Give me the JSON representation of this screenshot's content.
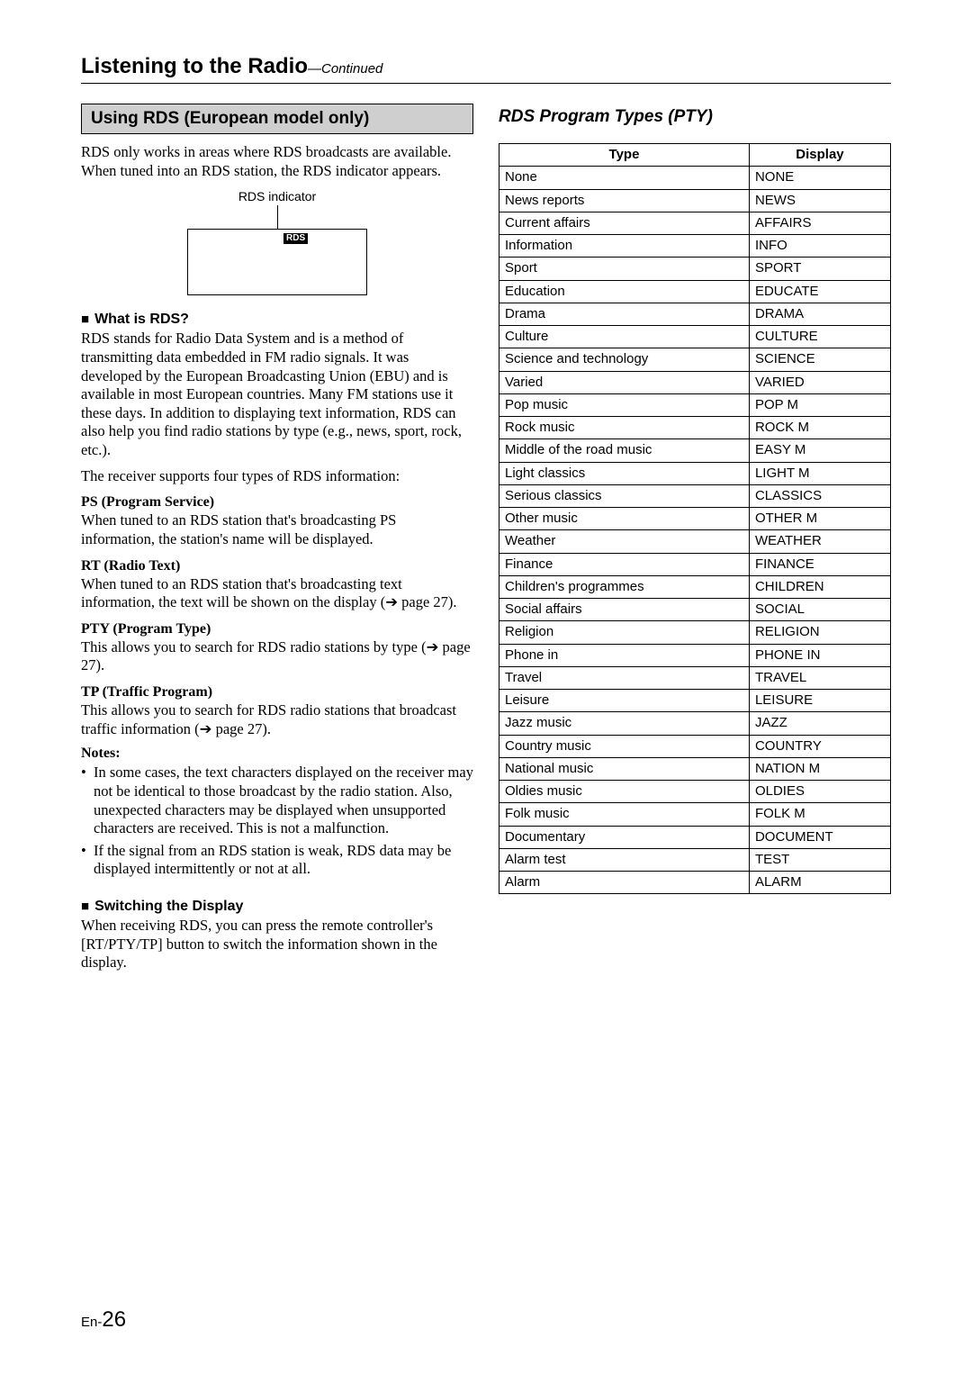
{
  "page": {
    "title": "Listening to the Radio",
    "continued": "—Continued",
    "footer_prefix": "En-",
    "footer_number": "26"
  },
  "left": {
    "section_title": "Using RDS (European model only)",
    "intro": "RDS only works in areas where RDS broadcasts are available. When tuned into an RDS station, the RDS indicator appears.",
    "diagram": {
      "label": "RDS indicator",
      "chip": "RDS"
    },
    "what_is_heading": "What is RDS?",
    "what_is_body": "RDS stands for Radio Data System and is a method of transmitting data embedded in FM radio signals. It was developed by the European Broadcasting Union (EBU) and is available in most European countries. Many FM stations use it these days. In addition to displaying text information, RDS can also help you find radio stations by type (e.g., news, sport, rock, etc.).",
    "supports_line": "The receiver supports four types of RDS information:",
    "ps": {
      "title": "PS (Program Service)",
      "body": "When tuned to an RDS station that's broadcasting PS information, the station's name will be displayed."
    },
    "rt": {
      "title": "RT (Radio Text)",
      "body": "When tuned to an RDS station that's broadcasting text information, the text will be shown on the display (➔ page 27)."
    },
    "pty": {
      "title": "PTY (Program Type)",
      "body": "This allows you to search for RDS radio stations by type (➔ page 27)."
    },
    "tp": {
      "title": "TP (Traffic Program)",
      "body": "This allows you to search for RDS radio stations that broadcast traffic information (➔ page 27)."
    },
    "notes_title": "Notes:",
    "notes": [
      "In some cases, the text characters displayed on the receiver may not be identical to those broadcast by the radio station. Also, unexpected characters may be displayed when unsupported characters are received. This is not a malfunction.",
      "If the signal from an RDS station is weak, RDS data may be displayed intermittently or not at all."
    ],
    "switching_heading": "Switching the Display",
    "switching_body": "When receiving RDS, you can press the remote controller's [RT/PTY/TP] button to switch the information shown in the display."
  },
  "right": {
    "heading": "RDS Program Types (PTY)",
    "table": {
      "columns": [
        "Type",
        "Display"
      ],
      "rows": [
        [
          "None",
          "NONE"
        ],
        [
          "News reports",
          "NEWS"
        ],
        [
          "Current affairs",
          "AFFAIRS"
        ],
        [
          "Information",
          "INFO"
        ],
        [
          "Sport",
          "SPORT"
        ],
        [
          "Education",
          "EDUCATE"
        ],
        [
          "Drama",
          "DRAMA"
        ],
        [
          "Culture",
          "CULTURE"
        ],
        [
          "Science and technology",
          "SCIENCE"
        ],
        [
          "Varied",
          "VARIED"
        ],
        [
          "Pop music",
          "POP M"
        ],
        [
          "Rock music",
          "ROCK M"
        ],
        [
          "Middle of the road music",
          "EASY M"
        ],
        [
          "Light classics",
          "LIGHT M"
        ],
        [
          "Serious classics",
          "CLASSICS"
        ],
        [
          "Other music",
          "OTHER M"
        ],
        [
          "Weather",
          "WEATHER"
        ],
        [
          "Finance",
          "FINANCE"
        ],
        [
          "Children's programmes",
          "CHILDREN"
        ],
        [
          "Social affairs",
          "SOCIAL"
        ],
        [
          "Religion",
          "RELIGION"
        ],
        [
          "Phone in",
          "PHONE IN"
        ],
        [
          "Travel",
          "TRAVEL"
        ],
        [
          "Leisure",
          "LEISURE"
        ],
        [
          "Jazz music",
          "JAZZ"
        ],
        [
          "Country music",
          "COUNTRY"
        ],
        [
          "National music",
          "NATION M"
        ],
        [
          "Oldies music",
          "OLDIES"
        ],
        [
          "Folk music",
          "FOLK M"
        ],
        [
          "Documentary",
          "DOCUMENT"
        ],
        [
          "Alarm test",
          "TEST"
        ],
        [
          "Alarm",
          "ALARM"
        ]
      ]
    }
  }
}
